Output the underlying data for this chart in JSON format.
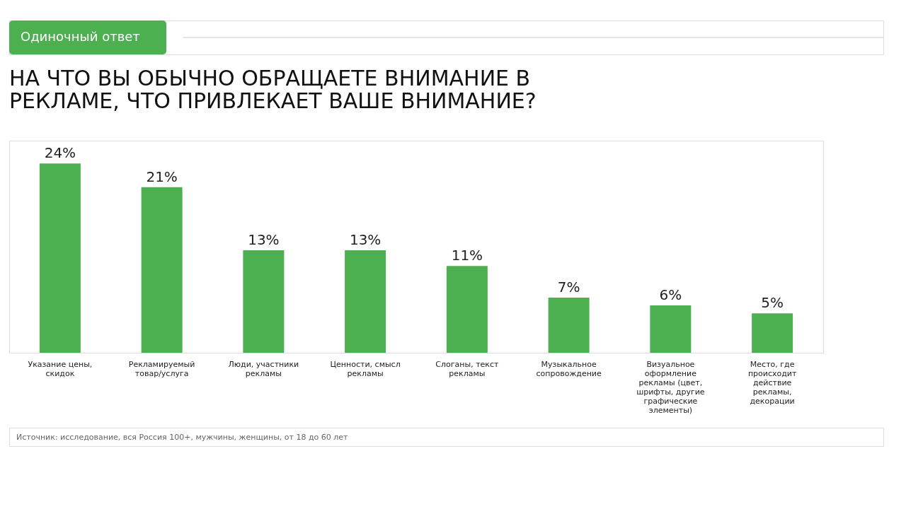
{
  "chart_data": {
    "type": "bar",
    "subtitle": "Одиночный ответ",
    "title": "НА ЧТО ВЫ ОБЫЧНО ОБРАЩАЕТЕ ВНИМАНИЕ В РЕКЛАМЕ, ЧТО ПРИВЛЕКАЕТ ВАШЕ ВНИМАНИЕ?",
    "categories": [
      "Указание цены, скидок",
      "Рекламируемый товар/услуга",
      "Люди, участники рекламы",
      "Ценности, смысл рекламы",
      "Слоганы, текст рекламы",
      "Музыкальное сопровождение",
      "Визуальное оформление рекламы (цвет, шрифты, другие графические элементы)",
      "Место, где происходит действие рекламы, декорации"
    ],
    "values": [
      24,
      21,
      13,
      13,
      11,
      7,
      6,
      5
    ],
    "color": "#4caf50",
    "data_labels": true,
    "value_labels": [
      "24%",
      "21%",
      "13%",
      "13%",
      "11%",
      "7%",
      "6%",
      "5%"
    ],
    "annotations": [
      "Источник: исследование, вся Россия 100+, мужчины, женщины, от 18 до 60 лет"
    ]
  }
}
